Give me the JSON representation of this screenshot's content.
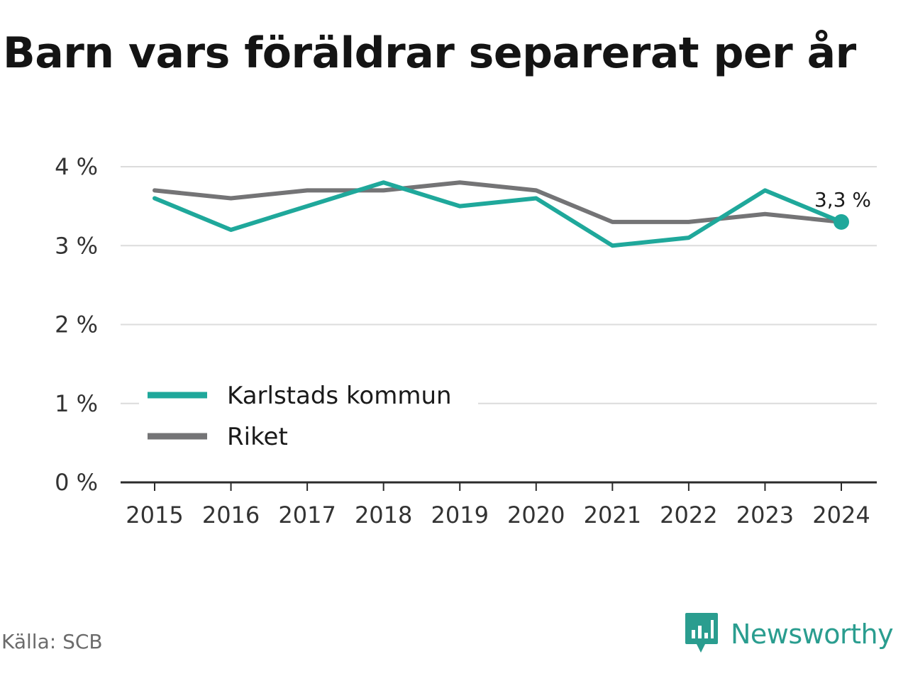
{
  "title": "Barn vars föräldrar separerat per år",
  "source": "Källa: SCB",
  "brand": {
    "name": "Newsworthy",
    "color": "#2a9d8f"
  },
  "chart_data": {
    "type": "line",
    "title": "Barn vars föräldrar separerat per år",
    "x": [
      "2015",
      "2016",
      "2017",
      "2018",
      "2019",
      "2020",
      "2021",
      "2022",
      "2023",
      "2024"
    ],
    "ylim": [
      0,
      4
    ],
    "yticks": [
      0,
      1,
      2,
      3,
      4
    ],
    "ytick_labels": [
      "0 %",
      "1 %",
      "2 %",
      "3 %",
      "4 %"
    ],
    "grid": true,
    "legend_position": "bottom-left",
    "series": [
      {
        "name": "Karlstads kommun",
        "color": "#1fa89b",
        "values": [
          3.6,
          3.2,
          3.5,
          3.8,
          3.5,
          3.6,
          3.0,
          3.1,
          3.7,
          3.3
        ]
      },
      {
        "name": "Riket",
        "color": "#747476",
        "values": [
          3.7,
          3.6,
          3.7,
          3.7,
          3.8,
          3.7,
          3.3,
          3.3,
          3.4,
          3.3
        ]
      }
    ],
    "annotation": {
      "series": 0,
      "index": 9,
      "label": "3,3 %"
    }
  }
}
